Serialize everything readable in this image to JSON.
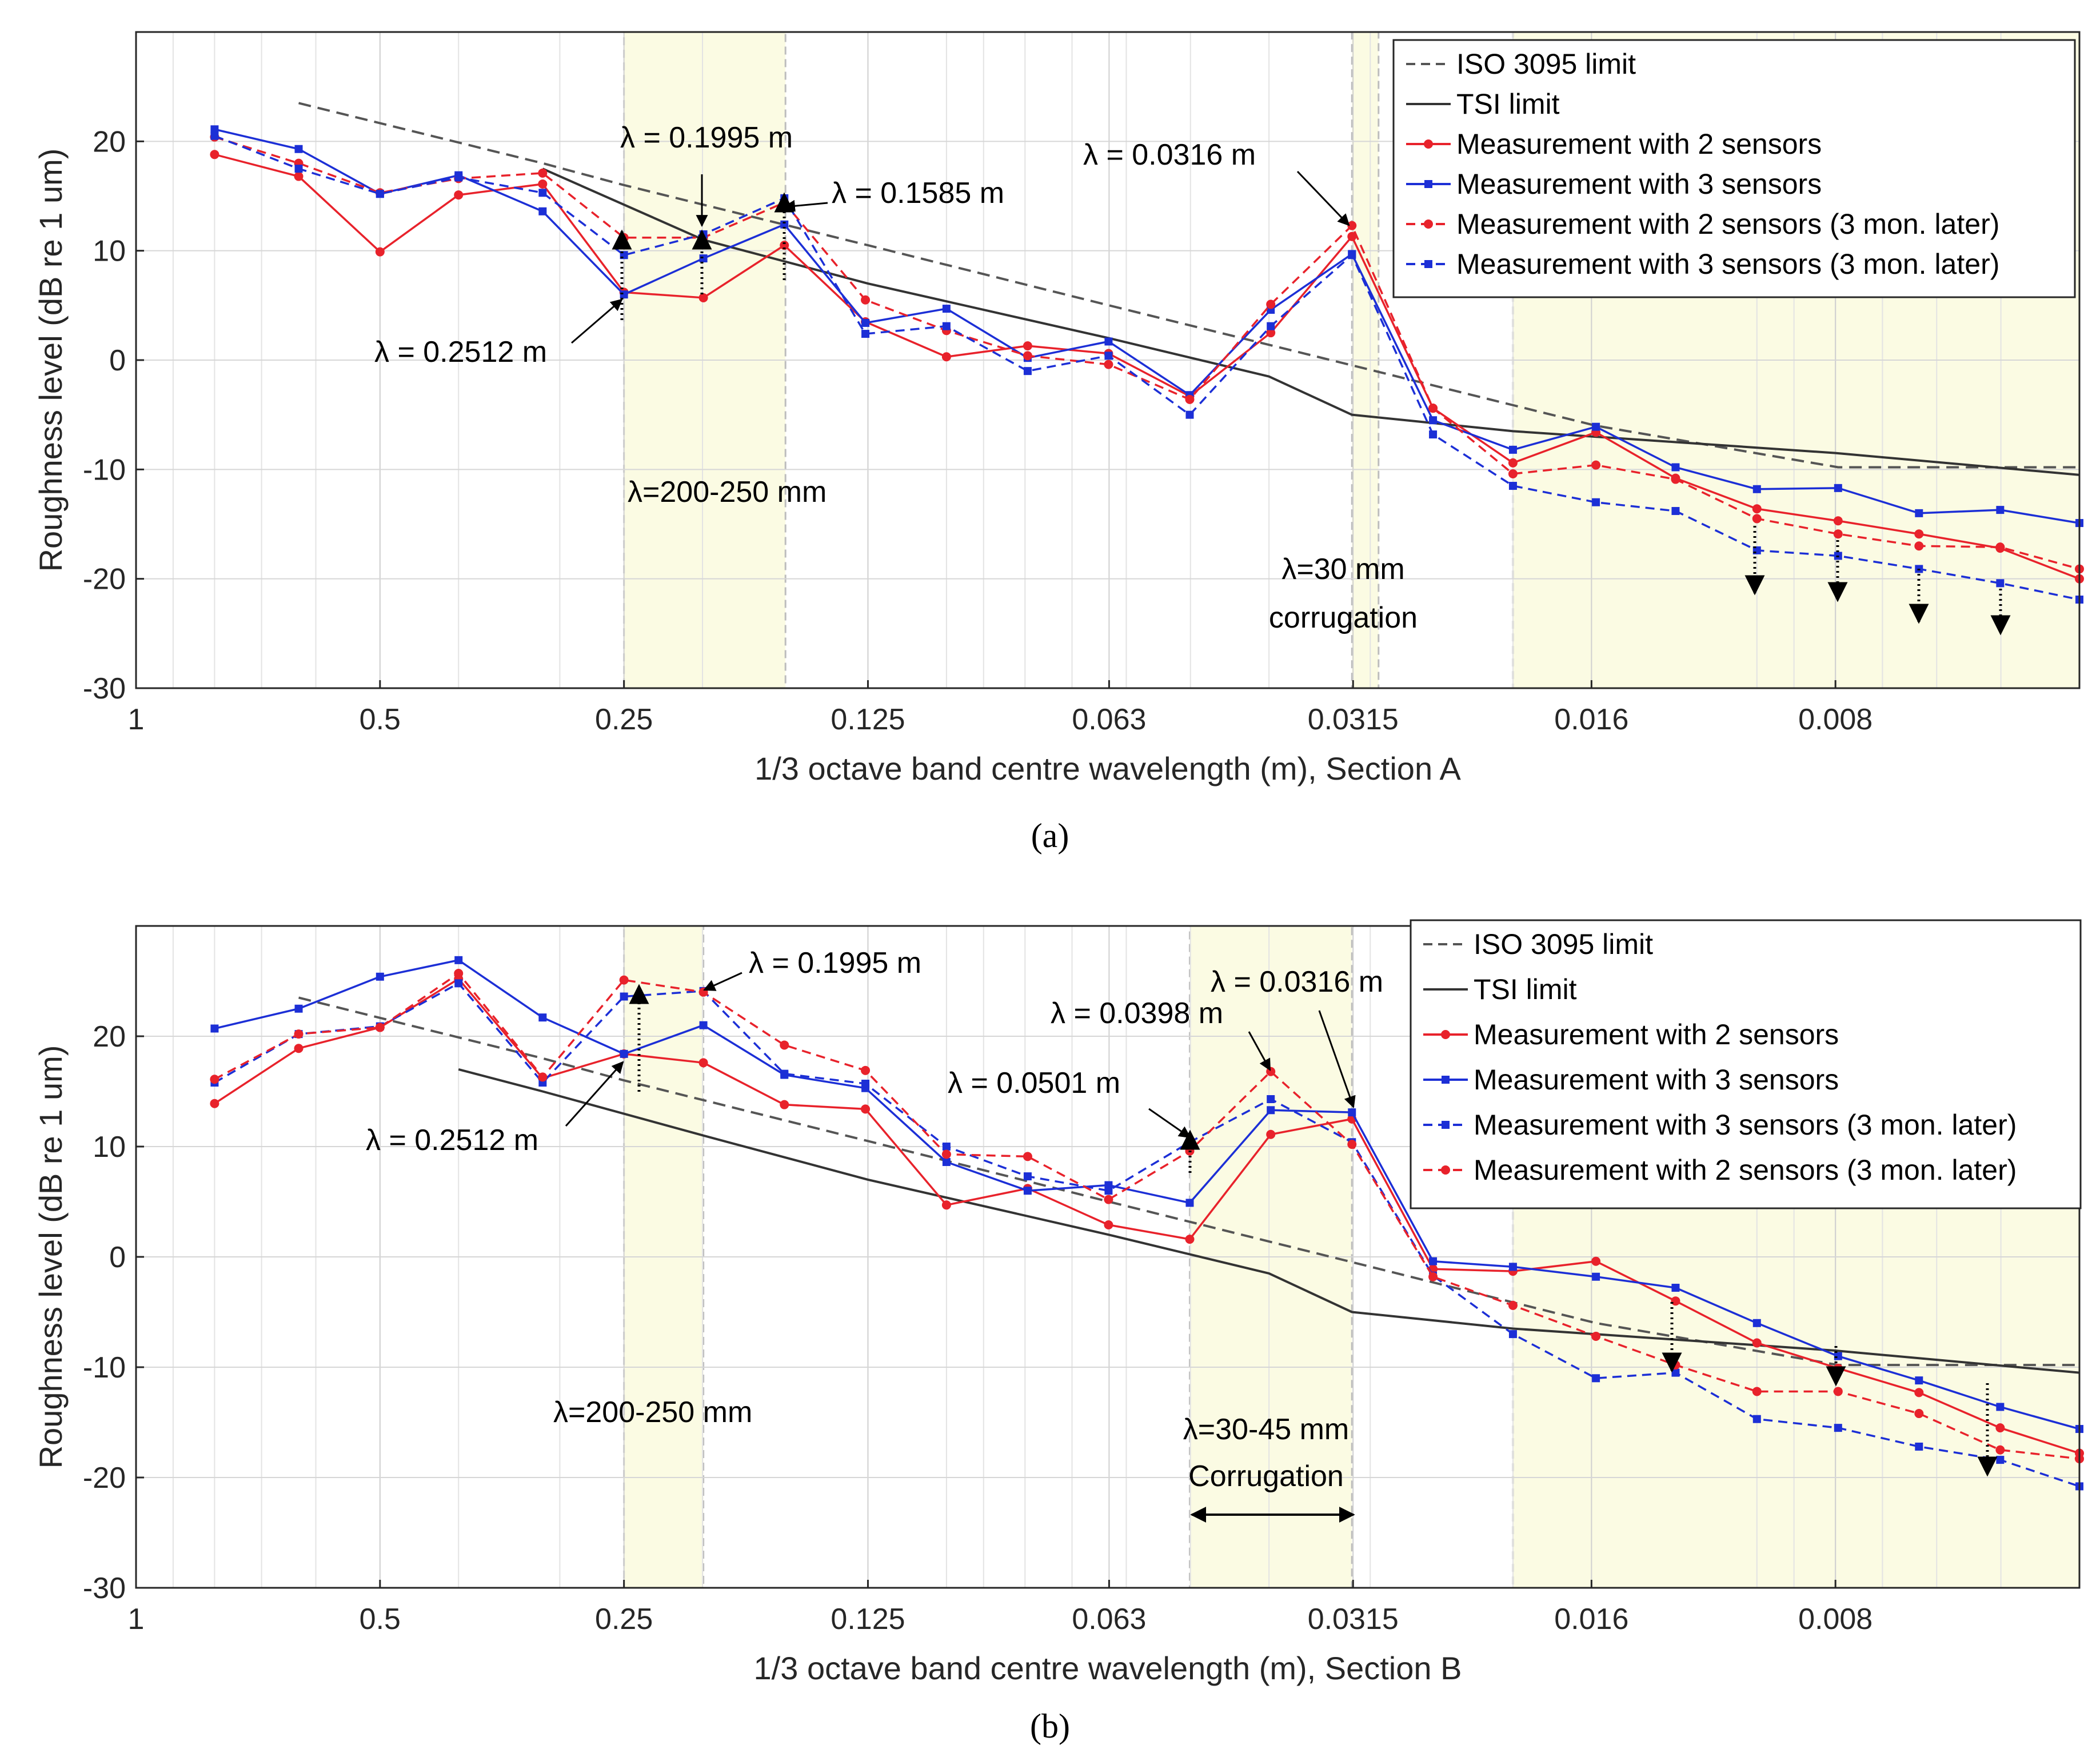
{
  "figure": {
    "captions": [
      "(a)",
      "(b)"
    ]
  },
  "chart_data": [
    {
      "type": "line",
      "panel": "a",
      "xlabel": "1/3 octave band centre wavelength (m), Section A",
      "ylabel": "Roughness level (dB re 1 um)",
      "x_scale": "log",
      "x_reversed": true,
      "xlim": [
        1,
        0.004
      ],
      "ylim": [
        -30,
        30
      ],
      "yticks": [
        -30,
        -20,
        -10,
        0,
        10,
        20
      ],
      "xticks": [
        {
          "value": 1,
          "label": "1"
        },
        {
          "value": 0.5,
          "label": "0.5"
        },
        {
          "value": 0.25,
          "label": "0.25"
        },
        {
          "value": 0.125,
          "label": "0.125"
        },
        {
          "value": 0.063,
          "label": "0.063"
        },
        {
          "value": 0.0315,
          "label": "0.0315"
        },
        {
          "value": 0.016,
          "label": "0.016"
        },
        {
          "value": 0.008,
          "label": "0.008"
        }
      ],
      "grid": true,
      "legend_position": "top-right",
      "highlight_bands": [
        {
          "from": 0.25,
          "to": 0.158
        },
        {
          "from": 0.0316,
          "to": 0.0293
        },
        {
          "from": 0.02,
          "to": 0.004
        }
      ],
      "series": [
        {
          "name": "ISO 3095 limit",
          "color": "#555555",
          "style": "dashed",
          "marker": "none",
          "x": [
            0.63,
            0.315,
            0.25,
            0.125,
            0.063,
            0.0315,
            0.0158,
            0.00794,
            0.004
          ],
          "y": [
            23.5,
            18,
            16,
            10.5,
            5,
            -0.5,
            -6,
            -9.8,
            -9.8
          ]
        },
        {
          "name": "TSI limit",
          "color": "#333333",
          "style": "solid",
          "marker": "none",
          "x": [
            0.315,
            0.1995,
            0.125,
            0.063,
            0.04,
            0.0316,
            0.02,
            0.0126,
            0.008,
            0.004
          ],
          "y": [
            17.5,
            11,
            7,
            2,
            -1.5,
            -5,
            -6.5,
            -7.5,
            -8.5,
            -10.5
          ]
        },
        {
          "name": "Measurement with 2 sensors",
          "color": "#e8222b",
          "style": "solid",
          "marker": "circle",
          "x": [
            0.8,
            0.63,
            0.5,
            0.4,
            0.315,
            0.25,
            0.1995,
            0.1585,
            0.1259,
            0.1,
            0.0794,
            0.0631,
            0.0501,
            0.0398,
            0.0316,
            0.0251,
            0.02,
            0.0158,
            0.0126,
            0.01,
            0.00794,
            0.00631,
            0.00501,
            0.004
          ],
          "y": [
            18.8,
            16.8,
            9.9,
            15.1,
            16.1,
            6.2,
            5.7,
            10.5,
            3.5,
            0.3,
            1.3,
            0.6,
            -3.3,
            2.5,
            11.3,
            -4.4,
            -9.4,
            -6.6,
            -10.8,
            -13.6,
            -14.7,
            -15.9,
            -17.2,
            -20
          ]
        },
        {
          "name": "Measurement with 3 sensors",
          "color": "#1c2fd6",
          "style": "solid",
          "marker": "square",
          "x": [
            0.8,
            0.63,
            0.5,
            0.4,
            0.315,
            0.25,
            0.1995,
            0.1585,
            0.1259,
            0.1,
            0.0794,
            0.0631,
            0.0501,
            0.0398,
            0.0316,
            0.0251,
            0.02,
            0.0158,
            0.0126,
            0.01,
            0.00794,
            0.00631,
            0.00501,
            0.004
          ],
          "y": [
            21.1,
            19.3,
            15.2,
            16.9,
            13.6,
            6.0,
            9.3,
            12.4,
            3.4,
            4.7,
            0.2,
            1.7,
            -3.2,
            4.6,
            9.7,
            -5.5,
            -8.2,
            -6.1,
            -9.8,
            -11.8,
            -11.7,
            -14.0,
            -13.7,
            -14.9
          ]
        },
        {
          "name": "Measurement with 2 sensors (3 mon. later)",
          "color": "#e8222b",
          "style": "dashed",
          "marker": "circle",
          "x": [
            0.8,
            0.63,
            0.5,
            0.4,
            0.315,
            0.25,
            0.1995,
            0.1585,
            0.1259,
            0.1,
            0.0794,
            0.0631,
            0.0501,
            0.0398,
            0.0316,
            0.0251,
            0.02,
            0.0158,
            0.0126,
            0.01,
            0.00794,
            0.00631,
            0.00501,
            0.004
          ],
          "y": [
            20.4,
            18.0,
            15.3,
            16.6,
            17.1,
            11.2,
            11.2,
            14.4,
            5.5,
            2.7,
            0.4,
            -0.4,
            -3.6,
            5.1,
            12.3,
            -4.4,
            -10.4,
            -9.6,
            -10.9,
            -14.5,
            -15.9,
            -17.0,
            -17.1,
            -19.1
          ]
        },
        {
          "name": "Measurement with 3 sensors (3 mon. later)",
          "color": "#1c2fd6",
          "style": "dashed",
          "marker": "square",
          "x": [
            0.8,
            0.63,
            0.5,
            0.4,
            0.315,
            0.25,
            0.1995,
            0.1585,
            0.1259,
            0.1,
            0.0794,
            0.0631,
            0.0501,
            0.0398,
            0.0316,
            0.0251,
            0.02,
            0.0158,
            0.0126,
            0.01,
            0.00794,
            0.00631,
            0.00501,
            0.004
          ],
          "y": [
            20.5,
            17.5,
            15.2,
            16.7,
            15.3,
            9.6,
            11.5,
            14.8,
            2.4,
            3.1,
            -1.0,
            0.4,
            -5.0,
            3.1,
            9.6,
            -6.8,
            -11.5,
            -13.0,
            -13.8,
            -17.4,
            -17.9,
            -19.1,
            -20.4,
            -21.9
          ]
        }
      ],
      "annotations": [
        {
          "text": "λ = 0.1995 m"
        },
        {
          "text": "λ = 0.1585 m"
        },
        {
          "text": "λ = 0.2512 m"
        },
        {
          "text": "λ = 0.0316 m"
        },
        {
          "text": "λ=200-250 mm"
        },
        {
          "text": "λ=30 mm"
        },
        {
          "text": "corrugation"
        }
      ]
    },
    {
      "type": "line",
      "panel": "b",
      "xlabel": "1/3 octave band centre wavelength (m), Section B",
      "ylabel": "Roughness level (dB re 1 um)",
      "x_scale": "log",
      "x_reversed": true,
      "xlim": [
        1,
        0.004
      ],
      "ylim": [
        -30,
        30
      ],
      "yticks": [
        -30,
        -20,
        -10,
        0,
        10,
        20
      ],
      "xticks": [
        {
          "value": 1,
          "label": "1"
        },
        {
          "value": 0.5,
          "label": "0.5"
        },
        {
          "value": 0.25,
          "label": "0.25"
        },
        {
          "value": 0.125,
          "label": "0.125"
        },
        {
          "value": 0.063,
          "label": "0.063"
        },
        {
          "value": 0.0315,
          "label": "0.0315"
        },
        {
          "value": 0.016,
          "label": "0.016"
        },
        {
          "value": 0.008,
          "label": "0.008"
        }
      ],
      "grid": true,
      "legend_position": "top-right",
      "highlight_bands": [
        {
          "from": 0.25,
          "to": 0.1995
        },
        {
          "from": 0.0501,
          "to": 0.0316
        },
        {
          "from": 0.02,
          "to": 0.004
        }
      ],
      "series": [
        {
          "name": "ISO 3095 limit",
          "color": "#555555",
          "style": "dashed",
          "marker": "none",
          "x": [
            0.63,
            0.315,
            0.25,
            0.125,
            0.063,
            0.0315,
            0.0158,
            0.00794,
            0.004
          ],
          "y": [
            23.5,
            18,
            16,
            10.5,
            5,
            -0.5,
            -6,
            -9.8,
            -9.8
          ]
        },
        {
          "name": "TSI limit",
          "color": "#333333",
          "style": "solid",
          "marker": "none",
          "x": [
            0.4,
            0.315,
            0.1995,
            0.125,
            0.063,
            0.04,
            0.0316,
            0.02,
            0.0126,
            0.008,
            0.004
          ],
          "y": [
            17,
            15,
            11,
            7,
            2,
            -1.5,
            -5,
            -6.5,
            -7.5,
            -8.5,
            -10.5
          ]
        },
        {
          "name": "Measurement with 2 sensors",
          "color": "#e8222b",
          "style": "solid",
          "marker": "circle",
          "x": [
            0.8,
            0.63,
            0.5,
            0.4,
            0.315,
            0.25,
            0.1995,
            0.1585,
            0.1259,
            0.1,
            0.0794,
            0.0631,
            0.0501,
            0.0398,
            0.0316,
            0.0251,
            0.02,
            0.0158,
            0.0126,
            0.01,
            0.00794,
            0.00631,
            0.00501,
            0.004
          ],
          "y": [
            13.9,
            18.9,
            20.8,
            25.2,
            16.2,
            18.4,
            17.6,
            13.8,
            13.4,
            4.7,
            6.2,
            2.9,
            1.6,
            11.1,
            12.5,
            -1.1,
            -1.3,
            -0.4,
            -4.0,
            -7.8,
            -10.1,
            -12.3,
            -15.5,
            -17.8
          ]
        },
        {
          "name": "Measurement with 3 sensors",
          "color": "#1c2fd6",
          "style": "solid",
          "marker": "square",
          "x": [
            0.8,
            0.63,
            0.5,
            0.4,
            0.315,
            0.25,
            0.1995,
            0.1585,
            0.1259,
            0.1,
            0.0794,
            0.0631,
            0.0501,
            0.0398,
            0.0316,
            0.0251,
            0.02,
            0.0158,
            0.0126,
            0.01,
            0.00794,
            0.00631,
            0.00501,
            0.004
          ],
          "y": [
            20.7,
            22.5,
            25.4,
            26.9,
            21.7,
            18.4,
            21.0,
            16.5,
            15.3,
            8.6,
            6.0,
            6.5,
            4.9,
            13.3,
            13.1,
            -0.4,
            -0.9,
            -1.8,
            -2.8,
            -6.0,
            -9.0,
            -11.2,
            -13.6,
            -15.6
          ]
        },
        {
          "name": "Measurement with 3 sensors (3 mon. later)",
          "color": "#1c2fd6",
          "style": "dashed",
          "marker": "square",
          "x": [
            0.8,
            0.63,
            0.5,
            0.4,
            0.315,
            0.25,
            0.1995,
            0.1585,
            0.1259,
            0.1,
            0.0794,
            0.0631,
            0.0501,
            0.0398,
            0.0316,
            0.0251,
            0.02,
            0.0158,
            0.0126,
            0.01,
            0.00794,
            0.00631,
            0.00501,
            0.004
          ],
          "y": [
            15.8,
            20.2,
            20.9,
            24.8,
            15.8,
            23.6,
            24.1,
            16.6,
            15.7,
            10.0,
            7.3,
            6.0,
            10.4,
            14.3,
            10.4,
            -1.7,
            -7.0,
            -11.0,
            -10.5,
            -14.7,
            -15.5,
            -17.2,
            -18.4,
            -20.8
          ]
        },
        {
          "name": "Measurement with 2 sensors (3 mon. later)",
          "color": "#e8222b",
          "style": "dashed",
          "marker": "circle",
          "x": [
            0.8,
            0.63,
            0.5,
            0.4,
            0.315,
            0.25,
            0.1995,
            0.1585,
            0.1259,
            0.1,
            0.0794,
            0.0631,
            0.0501,
            0.0398,
            0.0316,
            0.0251,
            0.02,
            0.0158,
            0.0126,
            0.01,
            0.00794,
            0.00631,
            0.00501,
            0.004
          ],
          "y": [
            16.1,
            20.2,
            20.8,
            25.7,
            16.3,
            25.1,
            24.0,
            19.2,
            16.9,
            9.3,
            9.1,
            5.2,
            9.6,
            16.8,
            10.2,
            -1.8,
            -4.4,
            -7.2,
            -9.8,
            -12.2,
            -12.2,
            -14.2,
            -17.5,
            -18.3
          ]
        }
      ],
      "annotations": [
        {
          "text": "λ = 0.1995 m"
        },
        {
          "text": "λ = 0.2512 m"
        },
        {
          "text": "λ = 0.0501 m"
        },
        {
          "text": "λ = 0.0398 m"
        },
        {
          "text": "λ = 0.0316 m"
        },
        {
          "text": "λ=200-250 mm"
        },
        {
          "text": "λ=30-45 mm"
        },
        {
          "text": "Corrugation"
        }
      ]
    }
  ]
}
